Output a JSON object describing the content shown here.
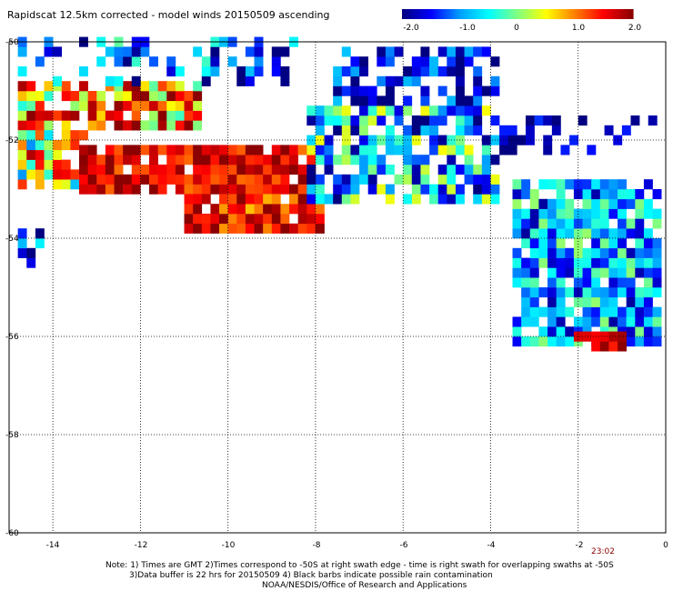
{
  "chart_data": {
    "type": "heatmap",
    "title": "Rapidscat 12.5km corrected - model winds 20150509 ascending",
    "colorbar": {
      "min": -2.0,
      "max": 2.0,
      "tick_labels": [
        "-2.0",
        "-1.0",
        "0",
        "1.0",
        "2.0"
      ],
      "colors": [
        "#000080",
        "#0000ff",
        "#00a0ff",
        "#00ffff",
        "#80ff80",
        "#ffff00",
        "#ff8000",
        "#ff0000",
        "#8b0000"
      ]
    },
    "x_ticks": [
      "-14",
      "-12",
      "-10",
      "-8",
      "-6",
      "-4",
      "-2",
      "0"
    ],
    "y_ticks": [
      "-50",
      "-52",
      "-54",
      "-56",
      "-58",
      "-60"
    ],
    "xlim": [
      -15,
      0
    ],
    "ylim": [
      -60,
      -50
    ],
    "grid": true,
    "swath_time": "23:02",
    "cell_deg": 0.2,
    "regions": [
      {
        "lon": [
          -14.8,
          -10.6
        ],
        "lat": [
          -51.8,
          -50.8
        ],
        "base": 0.9,
        "noise": 1.3,
        "density": 0.8
      },
      {
        "lon": [
          -14.8,
          -13.2
        ],
        "lat": [
          -53.0,
          -51.8
        ],
        "base": 0.5,
        "noise": 1.6,
        "density": 0.85
      },
      {
        "lon": [
          -13.4,
          -8.1
        ],
        "lat": [
          -53.1,
          -52.1
        ],
        "base": 1.6,
        "noise": 0.6,
        "density": 0.95
      },
      {
        "lon": [
          -11.0,
          -7.9
        ],
        "lat": [
          -53.9,
          -53.1
        ],
        "base": 1.5,
        "noise": 0.8,
        "density": 0.9
      },
      {
        "lon": [
          -8.2,
          -3.8
        ],
        "lat": [
          -53.3,
          -51.3
        ],
        "base": -0.8,
        "noise": 1.3,
        "density": 0.7
      },
      {
        "lon": [
          -7.6,
          -3.8
        ],
        "lat": [
          -51.3,
          -50.2
        ],
        "base": -1.6,
        "noise": 0.8,
        "density": 0.5
      },
      {
        "lon": [
          -3.8,
          -0.2
        ],
        "lat": [
          -52.3,
          -51.5
        ],
        "base": -1.8,
        "noise": 0.5,
        "density": 0.3
      },
      {
        "lon": [
          -3.5,
          -0.1
        ],
        "lat": [
          -56.2,
          -52.9
        ],
        "base": -0.9,
        "noise": 1.0,
        "density": 0.9
      },
      {
        "lon": [
          -2.1,
          -1.0
        ],
        "lat": [
          -56.3,
          -55.9
        ],
        "base": 1.7,
        "noise": 0.4,
        "density": 0.9
      },
      {
        "lon": [
          -14.8,
          -8.3
        ],
        "lat": [
          -50.9,
          -50.0
        ],
        "base": -1.3,
        "noise": 1.2,
        "density": 0.3
      },
      {
        "lon": [
          -14.8,
          -14.3
        ],
        "lat": [
          -54.6,
          -53.9
        ],
        "base": -1.4,
        "noise": 1.0,
        "density": 0.75
      }
    ],
    "notes": [
      "Note: 1) Times are GMT 2)Times correspond to -50S at right swath edge - time is right swath for overlapping swaths at -50S",
      "3)Data buffer is 22 hrs for 20150509 4) Black barbs indicate possible rain contamination",
      "NOAA/NESDIS/Office of Research and Applications"
    ]
  }
}
